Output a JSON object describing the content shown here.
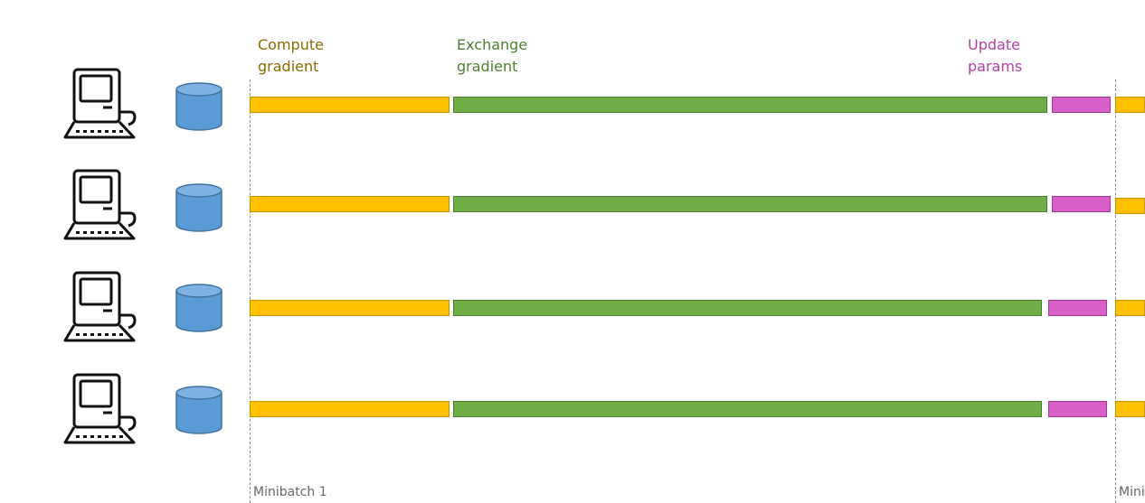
{
  "diagram": {
    "phase_labels": {
      "compute": [
        "Compute",
        "gradient"
      ],
      "exchange": [
        "Exchange",
        "gradient"
      ],
      "update": [
        "Update",
        "params"
      ]
    },
    "minibatch_labels": [
      "Minibatch 1",
      "Mini"
    ],
    "workers": [
      {
        "computer_icon": "computer-icon",
        "storage_icon": "database-icon"
      },
      {
        "computer_icon": "computer-icon",
        "storage_icon": "database-icon"
      },
      {
        "computer_icon": "computer-icon",
        "storage_icon": "database-icon"
      },
      {
        "computer_icon": "computer-icon",
        "storage_icon": "database-icon"
      }
    ],
    "colors": {
      "compute": "#ffc000",
      "exchange": "#70ad47",
      "update": "#d75fc7",
      "compute_label": "#8a6a00",
      "exchange_label": "#4e7f30",
      "update_label": "#b13fa8",
      "storage": "#5b9bd5"
    }
  }
}
